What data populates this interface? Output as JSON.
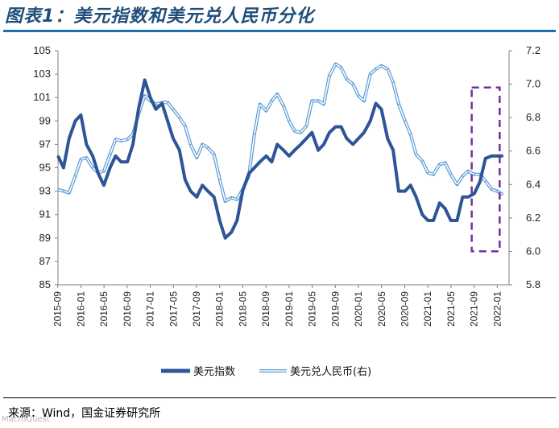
{
  "header": {
    "title": "图表1：美元指数和美元兑人民币分化"
  },
  "source_note": "来源：Wind，国金证券研究所",
  "watermark": "MacroQuest",
  "colors": {
    "dxy": "#2e5597",
    "cny_line": "#5b9bd5",
    "highlight": "#7030a0",
    "title": "#1f4e79"
  },
  "chart_data": {
    "type": "line",
    "title": "美元指数和美元兑人民币分化",
    "xlabel": "",
    "ylabel_left": "",
    "ylabel_right": "",
    "categories": [
      "2015-09",
      "2016-01",
      "2016-05",
      "2016-09",
      "2017-01",
      "2017-05",
      "2017-09",
      "2018-01",
      "2018-05",
      "2018-09",
      "2019-01",
      "2019-05",
      "2019-09",
      "2020-01",
      "2020-05",
      "2020-09",
      "2021-01",
      "2021-05",
      "2021-09",
      "2022-01"
    ],
    "y_left": {
      "lim": [
        85,
        105
      ],
      "ticks": [
        85,
        87,
        89,
        91,
        93,
        95,
        97,
        99,
        101,
        103,
        105
      ]
    },
    "y_right": {
      "lim": [
        5.8,
        7.2
      ],
      "ticks": [
        "5.8",
        "6.0",
        "6.2",
        "6.4",
        "6.6",
        "6.8",
        "7.0",
        "7.2"
      ]
    },
    "legend": {
      "position": "bottom"
    },
    "highlight_box": {
      "x_from": "2021-09",
      "x_to": "2022-01",
      "y_from": 6.0,
      "y_to": 6.98,
      "axis": "right",
      "style": "dashed"
    },
    "series": [
      {
        "name": "美元指数",
        "axis": "left",
        "x": [
          2015.67,
          2015.75,
          2015.83,
          2015.92,
          2016.0,
          2016.08,
          2016.17,
          2016.25,
          2016.33,
          2016.42,
          2016.5,
          2016.58,
          2016.67,
          2016.75,
          2016.83,
          2016.92,
          2017.0,
          2017.08,
          2017.17,
          2017.25,
          2017.33,
          2017.42,
          2017.5,
          2017.58,
          2017.67,
          2017.75,
          2017.83,
          2017.92,
          2018.0,
          2018.08,
          2018.17,
          2018.25,
          2018.33,
          2018.42,
          2018.5,
          2018.58,
          2018.67,
          2018.75,
          2018.83,
          2018.92,
          2019.0,
          2019.08,
          2019.17,
          2019.25,
          2019.33,
          2019.42,
          2019.5,
          2019.58,
          2019.67,
          2019.75,
          2019.83,
          2019.92,
          2020.0,
          2020.08,
          2020.17,
          2020.25,
          2020.33,
          2020.42,
          2020.5,
          2020.58,
          2020.67,
          2020.75,
          2020.83,
          2020.92,
          2021.0,
          2021.08,
          2021.17,
          2021.25,
          2021.33,
          2021.42,
          2021.5,
          2021.58,
          2021.67,
          2021.75,
          2021.83,
          2021.92,
          2022.0,
          2022.08
        ],
        "values": [
          96.0,
          95.0,
          97.5,
          99.0,
          99.5,
          97.0,
          96.0,
          94.5,
          93.5,
          95.0,
          96.0,
          95.5,
          95.5,
          97.0,
          100.0,
          102.5,
          101.0,
          100.0,
          100.5,
          99.0,
          97.5,
          96.5,
          94.0,
          93.0,
          92.5,
          93.5,
          93.0,
          92.5,
          90.5,
          89.0,
          89.5,
          90.5,
          93.0,
          94.5,
          95.0,
          95.5,
          96.0,
          95.5,
          97.0,
          96.5,
          96.0,
          96.5,
          97.0,
          97.5,
          98.0,
          96.5,
          97.0,
          98.0,
          98.5,
          98.5,
          97.5,
          97.0,
          97.5,
          98.0,
          99.0,
          100.5,
          100.0,
          97.5,
          96.5,
          93.0,
          93.0,
          93.5,
          92.5,
          91.0,
          90.5,
          90.5,
          92.0,
          91.5,
          90.5,
          90.5,
          92.5,
          92.5,
          92.8,
          93.8,
          95.8,
          96.0,
          96.0,
          96.0
        ]
      },
      {
        "name": "美元兑人民币(右)",
        "axis": "right",
        "x": [
          2015.67,
          2015.75,
          2015.83,
          2015.92,
          2016.0,
          2016.08,
          2016.17,
          2016.25,
          2016.33,
          2016.42,
          2016.5,
          2016.58,
          2016.67,
          2016.75,
          2016.83,
          2016.92,
          2017.0,
          2017.08,
          2017.17,
          2017.25,
          2017.33,
          2017.42,
          2017.5,
          2017.58,
          2017.67,
          2017.75,
          2017.83,
          2017.92,
          2018.0,
          2018.08,
          2018.17,
          2018.25,
          2018.33,
          2018.42,
          2018.5,
          2018.58,
          2018.67,
          2018.75,
          2018.83,
          2018.92,
          2019.0,
          2019.08,
          2019.17,
          2019.25,
          2019.33,
          2019.42,
          2019.5,
          2019.58,
          2019.67,
          2019.75,
          2019.83,
          2019.92,
          2020.0,
          2020.08,
          2020.17,
          2020.25,
          2020.33,
          2020.42,
          2020.5,
          2020.58,
          2020.67,
          2020.75,
          2020.83,
          2020.92,
          2021.0,
          2021.08,
          2021.17,
          2021.25,
          2021.33,
          2021.42,
          2021.5,
          2021.58,
          2021.67,
          2021.75,
          2021.83,
          2021.92,
          2022.0,
          2022.08
        ],
        "values": [
          6.37,
          6.36,
          6.35,
          6.45,
          6.55,
          6.56,
          6.5,
          6.47,
          6.48,
          6.58,
          6.67,
          6.66,
          6.67,
          6.7,
          6.82,
          6.93,
          6.9,
          6.88,
          6.89,
          6.89,
          6.85,
          6.8,
          6.75,
          6.64,
          6.56,
          6.64,
          6.62,
          6.58,
          6.43,
          6.3,
          6.32,
          6.31,
          6.37,
          6.45,
          6.7,
          6.88,
          6.84,
          6.9,
          6.94,
          6.87,
          6.78,
          6.72,
          6.71,
          6.75,
          6.9,
          6.9,
          6.88,
          7.05,
          7.12,
          7.1,
          7.03,
          7.0,
          6.93,
          6.9,
          7.06,
          7.09,
          7.11,
          7.09,
          7.01,
          6.88,
          6.78,
          6.7,
          6.58,
          6.54,
          6.47,
          6.46,
          6.52,
          6.53,
          6.46,
          6.4,
          6.45,
          6.48,
          6.46,
          6.46,
          6.42,
          6.37,
          6.36,
          6.34
        ]
      }
    ]
  }
}
